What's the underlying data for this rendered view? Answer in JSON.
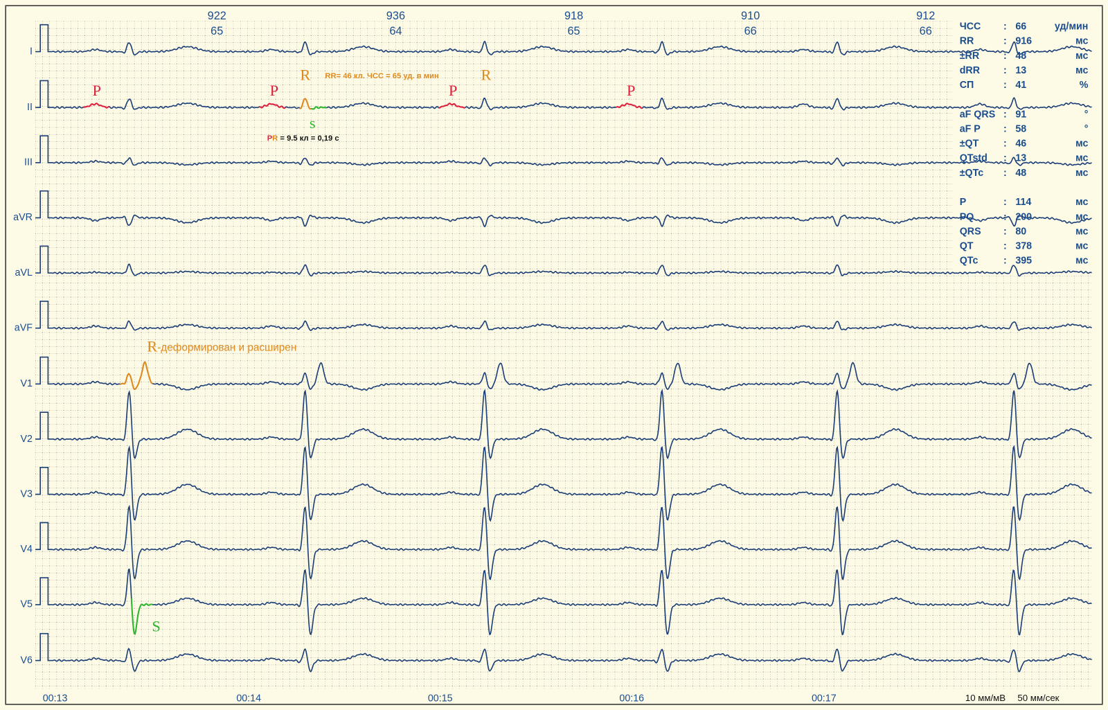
{
  "rr_intervals": [
    {
      "rr": "922",
      "hr": "65"
    },
    {
      "rr": "936",
      "hr": "64"
    },
    {
      "rr": "918",
      "hr": "65"
    },
    {
      "rr": "910",
      "hr": "66"
    },
    {
      "rr": "912",
      "hr": "66"
    }
  ],
  "leads": [
    "I",
    "II",
    "III",
    "aVR",
    "aVL",
    "aVF",
    "V1",
    "V2",
    "V3",
    "V4",
    "V5",
    "V6"
  ],
  "time_labels": [
    "00:13",
    "00:14",
    "00:15",
    "00:16",
    "00:17"
  ],
  "scale": {
    "amplitude": "10 мм/мВ",
    "speed": "50 мм/сек"
  },
  "stats": [
    [
      [
        "ЧСС",
        ":",
        "66",
        "уд/мин"
      ],
      [
        "RR",
        ":",
        "916",
        "мс"
      ],
      [
        "±RR",
        ":",
        "48",
        "мс"
      ],
      [
        "dRR",
        ":",
        "13",
        "мс"
      ],
      [
        "СП",
        ":",
        "41",
        "%"
      ]
    ],
    [
      [
        "aF QRS",
        ":",
        "91",
        "°"
      ],
      [
        "aF P",
        ":",
        "58",
        "°"
      ],
      [
        "±QT",
        ":",
        "46",
        "мс"
      ],
      [
        "QTstd",
        ":",
        "13",
        "мс"
      ],
      [
        "±QTc",
        ":",
        "48",
        "мс"
      ]
    ],
    [
      [
        "P",
        ":",
        "114",
        "мс"
      ],
      [
        "PQ",
        ":",
        "200",
        "мс"
      ],
      [
        "QRS",
        ":",
        "80",
        "мс"
      ],
      [
        "QT",
        ":",
        "378",
        "мс"
      ],
      [
        "QTc",
        ":",
        "395",
        "мс"
      ]
    ]
  ],
  "annotations": {
    "p_wave": [
      "P",
      "P",
      "P",
      "P"
    ],
    "r_wave": [
      "R",
      "R"
    ],
    "s_wave": "s",
    "rr_note": "RR= 46 кл. ЧСС = 65 уд. в мин",
    "pr_note": {
      "p": "P",
      "r": "R",
      "text": " = 9.5 кл = 0,19 с"
    },
    "v1_note": {
      "r": "R",
      "text": "-деформирован и расширен"
    },
    "v5_s": "S"
  }
}
